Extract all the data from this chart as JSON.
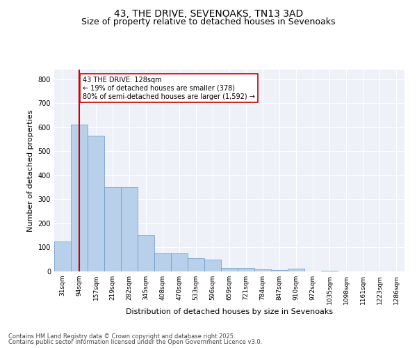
{
  "title_line1": "43, THE DRIVE, SEVENOAKS, TN13 3AD",
  "title_line2": "Size of property relative to detached houses in Sevenoaks",
  "xlabel": "Distribution of detached houses by size in Sevenoaks",
  "ylabel": "Number of detached properties",
  "categories": [
    "31sqm",
    "94sqm",
    "157sqm",
    "219sqm",
    "282sqm",
    "345sqm",
    "408sqm",
    "470sqm",
    "533sqm",
    "596sqm",
    "659sqm",
    "721sqm",
    "784sqm",
    "847sqm",
    "910sqm",
    "972sqm",
    "1035sqm",
    "1098sqm",
    "1161sqm",
    "1223sqm",
    "1286sqm"
  ],
  "values": [
    125,
    610,
    565,
    350,
    350,
    150,
    75,
    75,
    55,
    50,
    15,
    15,
    8,
    5,
    12,
    0,
    2,
    1,
    1,
    1,
    1
  ],
  "bar_color": "#b8d0ea",
  "bar_edge_color": "#6699cc",
  "vline_x_index": 1,
  "vline_color": "#cc0000",
  "annotation_text": "43 THE DRIVE: 128sqm\n← 19% of detached houses are smaller (378)\n80% of semi-detached houses are larger (1,592) →",
  "annotation_box_color": "#ffffff",
  "annotation_box_edge_color": "#cc0000",
  "ylim": [
    0,
    840
  ],
  "yticks": [
    0,
    100,
    200,
    300,
    400,
    500,
    600,
    700,
    800
  ],
  "footer_line1": "Contains HM Land Registry data © Crown copyright and database right 2025.",
  "footer_line2": "Contains public sector information licensed under the Open Government Licence v3.0.",
  "bg_color": "#eef2f8",
  "fig_bg_color": "#ffffff",
  "grid_color": "#ffffff",
  "title_fontsize": 10,
  "subtitle_fontsize": 9,
  "tick_fontsize": 6.5,
  "label_fontsize": 8,
  "footer_fontsize": 6,
  "annotation_fontsize": 7
}
